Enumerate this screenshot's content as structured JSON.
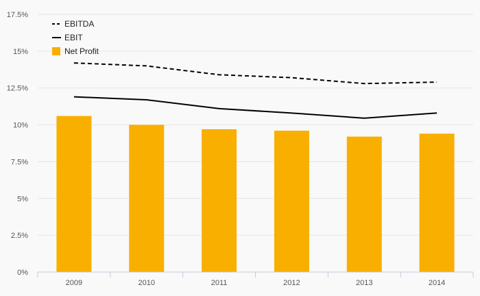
{
  "chart_data": {
    "type": "bar",
    "categories": [
      "2009",
      "2010",
      "2011",
      "2012",
      "2013",
      "2014"
    ],
    "ylim": [
      0,
      17.5
    ],
    "yticks": [
      "0%",
      "2.5%",
      "5%",
      "7.5%",
      "10%",
      "12.5%",
      "15%",
      "17.5%"
    ],
    "ytick_values": [
      0,
      2.5,
      5,
      7.5,
      10,
      12.5,
      15,
      17.5
    ],
    "grid": true,
    "legend_position": "top-left",
    "series": [
      {
        "name": "EBITDA",
        "kind": "line",
        "style": "dashed",
        "color": "#000000",
        "values": [
          14.2,
          14.0,
          13.4,
          13.2,
          12.8,
          12.9
        ]
      },
      {
        "name": "EBIT",
        "kind": "line",
        "style": "solid",
        "color": "#000000",
        "values": [
          11.9,
          11.7,
          11.1,
          10.8,
          10.45,
          10.8
        ]
      },
      {
        "name": "Net Profit",
        "kind": "bar",
        "color": "#F9AF00",
        "values": [
          10.6,
          10.0,
          9.7,
          9.6,
          9.2,
          9.4
        ]
      }
    ]
  }
}
